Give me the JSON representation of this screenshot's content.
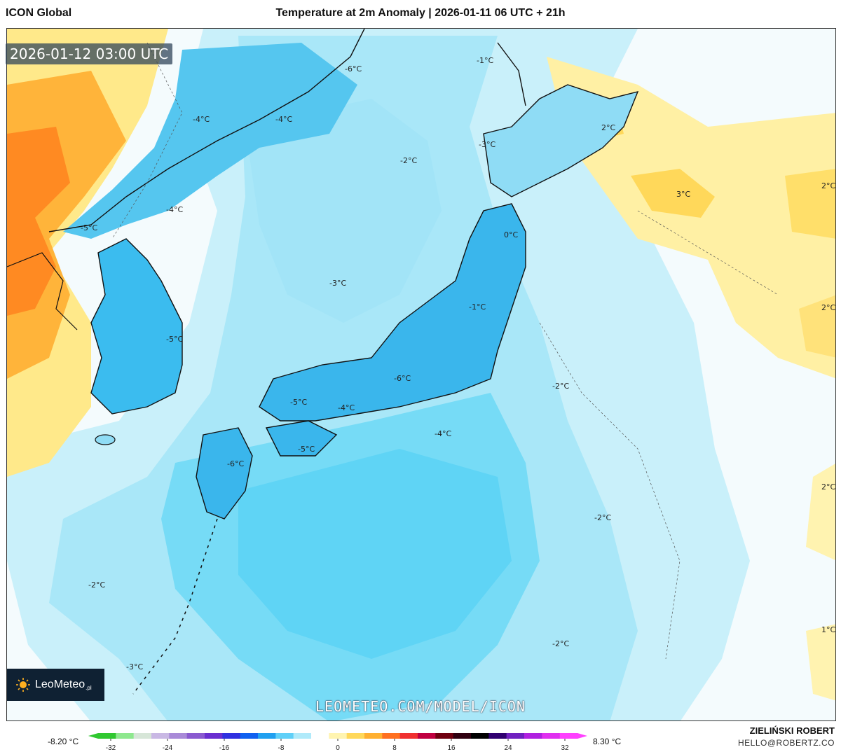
{
  "header": {
    "model": "ICON Global",
    "title": "Temperature at 2m Anomaly | 2026-01-11 06 UTC + 21h"
  },
  "timestamp": "2026-01-12 03:00 UTC",
  "logo": {
    "name": "LeoMeteo",
    "suffix": ".pl"
  },
  "watermark": "LEOMETEO.COM/MODEL/ICON",
  "author": "ZIELIŃSKI ROBERT",
  "email": "HELLO@ROBERTZ.CO",
  "colorbar": {
    "min_label": "-8.20 °C",
    "max_label": "8.30 °C",
    "ticks": [
      "-32",
      "-24",
      "-16",
      "-8",
      "0",
      "8",
      "16",
      "24",
      "32"
    ],
    "colors": [
      "#30c830",
      "#8ee88e",
      "#d7e6d8",
      "#c9b8e4",
      "#a98ad8",
      "#8a5ad0",
      "#6a2ed0",
      "#3030e0",
      "#1060f0",
      "#20a0f0",
      "#60d0f8",
      "#b0eafa",
      "#ffffff",
      "#fff4b0",
      "#ffd85a",
      "#ffb030",
      "#ff7020",
      "#f03030",
      "#c00040",
      "#700010",
      "#300010",
      "#000000",
      "#300070",
      "#7020c0",
      "#b020e0",
      "#e030f0",
      "#ff40ff"
    ]
  },
  "labels": [
    {
      "text": "-1°C"
    },
    {
      "text": "-6°C"
    },
    {
      "text": "-4°C"
    },
    {
      "text": "-4°C"
    },
    {
      "text": "2°C"
    },
    {
      "text": "-3°C"
    },
    {
      "text": "-2°C"
    },
    {
      "text": "3°C"
    },
    {
      "text": "2°C"
    },
    {
      "text": "-4°C"
    },
    {
      "text": "-5°C"
    },
    {
      "text": "0°C"
    },
    {
      "text": "-3°C"
    },
    {
      "text": "-1°C"
    },
    {
      "text": "2°C"
    },
    {
      "text": "-5°C"
    },
    {
      "text": "-6°C"
    },
    {
      "text": "-2°C"
    },
    {
      "text": "-5°C"
    },
    {
      "text": "-4°C"
    },
    {
      "text": "-4°C"
    },
    {
      "text": "-5°C"
    },
    {
      "text": "-6°C"
    },
    {
      "text": "2°C"
    },
    {
      "text": "-2°C"
    },
    {
      "text": "-2°C"
    },
    {
      "text": "1°C"
    },
    {
      "text": "-2°C"
    },
    {
      "text": "-3°C"
    }
  ],
  "palette": {
    "ocean_light": "#b7ecf8",
    "ocean_mid": "#8fe0f6",
    "ocean_deep": "#5fd4f5",
    "land_cold": "#3ab6ec",
    "land_colder": "#2a9be2",
    "warm_light": "#fff3b0",
    "warm_mid": "#ffdf5e",
    "hot": "#ff9a2a",
    "hotter": "#ff6a1a"
  }
}
